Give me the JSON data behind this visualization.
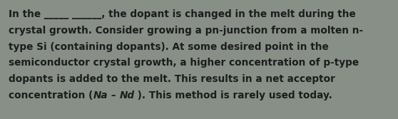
{
  "background_color": "#878f87",
  "text_color": "#1c1c1c",
  "font_size": 9.8,
  "fig_width": 5.58,
  "fig_height": 1.67,
  "dpi": 100,
  "lines": [
    {
      "segments": [
        {
          "text": "In the _____ ______, the dopant is changed in the melt during the",
          "style": "normal"
        }
      ]
    },
    {
      "segments": [
        {
          "text": "crystal growth. Consider growing a pn-junction from a molten n-",
          "style": "normal"
        }
      ]
    },
    {
      "segments": [
        {
          "text": "type Si (containing dopants). At some desired point in the",
          "style": "normal"
        }
      ]
    },
    {
      "segments": [
        {
          "text": "semiconductor crystal growth, a higher concentration of p-type",
          "style": "normal"
        }
      ]
    },
    {
      "segments": [
        {
          "text": "dopants is added to the melt. This results in a net acceptor",
          "style": "normal"
        }
      ]
    },
    {
      "segments": [
        {
          "text": "concentration (",
          "style": "normal"
        },
        {
          "text": "Na",
          "style": "italic"
        },
        {
          "text": " – ",
          "style": "normal"
        },
        {
          "text": "Nd",
          "style": "italic"
        },
        {
          "text": " ). This method is rarely used today.",
          "style": "normal"
        }
      ]
    }
  ]
}
